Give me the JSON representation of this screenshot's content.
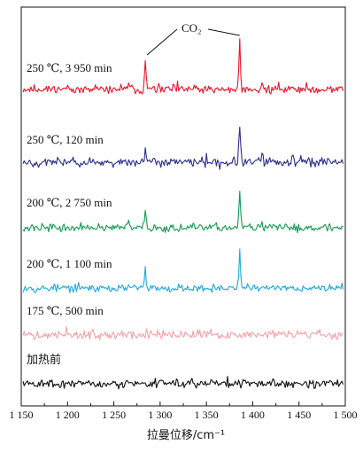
{
  "chart_data": {
    "type": "line",
    "xlabel": "拉曼位移/cm⁻¹",
    "xlim": [
      1150,
      1500
    ],
    "x_ticks": [
      {
        "value": 1150,
        "label": "1 150"
      },
      {
        "value": 1200,
        "label": "1 200"
      },
      {
        "value": 1250,
        "label": "1 250"
      },
      {
        "value": 1300,
        "label": "1 300"
      },
      {
        "value": 1350,
        "label": "1 350"
      },
      {
        "value": 1400,
        "label": "1 400"
      },
      {
        "value": 1450,
        "label": "1 450"
      },
      {
        "value": 1500,
        "label": "1 500"
      }
    ],
    "annotation": {
      "text": "CO₂",
      "peaks": [
        1284,
        1386
      ]
    },
    "series": [
      {
        "name": "250 ℃, 3 950 min",
        "color": "#e8152b",
        "noise": 1.0,
        "seed": 11,
        "peaks": [
          {
            "x": 1284,
            "height": 7.0
          },
          {
            "x": 1386,
            "height": 13.5
          },
          {
            "x": 1266,
            "height": 1.8
          },
          {
            "x": 1410,
            "height": 2.6
          },
          {
            "x": 1443,
            "height": 1.8
          }
        ]
      },
      {
        "name": "250 ℃, 120 min",
        "color": "#2c2c8c",
        "noise": 1.1,
        "seed": 23,
        "peaks": [
          {
            "x": 1284,
            "height": 4.2
          },
          {
            "x": 1386,
            "height": 10.0
          },
          {
            "x": 1410,
            "height": 2.6
          },
          {
            "x": 1443,
            "height": 2.2
          },
          {
            "x": 1452,
            "height": 1.6
          }
        ]
      },
      {
        "name": "200 ℃, 2 750 min",
        "color": "#129a52",
        "noise": 0.9,
        "seed": 37,
        "peaks": [
          {
            "x": 1284,
            "height": 5.5
          },
          {
            "x": 1386,
            "height": 10.0
          },
          {
            "x": 1266,
            "height": 1.6
          },
          {
            "x": 1410,
            "height": 2.0
          }
        ]
      },
      {
        "name": "200 ℃, 1 100 min",
        "color": "#1fa8e0",
        "noise": 0.9,
        "seed": 53,
        "peaks": [
          {
            "x": 1284,
            "height": 5.0
          },
          {
            "x": 1386,
            "height": 10.5
          }
        ]
      },
      {
        "name": "175 ℃, 500 min",
        "color": "#f3a3a8",
        "noise": 1.0,
        "seed": 71,
        "peaks": [
          {
            "x": 1227,
            "height": 1.8
          },
          {
            "x": 1418,
            "height": 1.6
          }
        ]
      },
      {
        "name": "加热前",
        "color": "#111111",
        "noise": 1.0,
        "seed": 89,
        "peaks": [
          {
            "x": 1318,
            "height": 1.6
          },
          {
            "x": 1422,
            "height": 1.8
          }
        ]
      }
    ]
  }
}
